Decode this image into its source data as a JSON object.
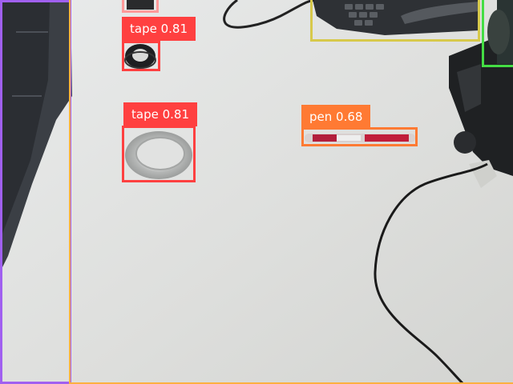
{
  "detections": [
    {
      "label": "tape 0.81",
      "color": "#ff4040"
    },
    {
      "label": "tape 0.81",
      "color": "#ff4040"
    },
    {
      "label": "pen 0.68",
      "color": "#ff7a33"
    }
  ],
  "unlabeled_boxes": [
    {
      "color": "#a060f0"
    },
    {
      "color": "#d7c94b"
    },
    {
      "color": "#44dd44"
    },
    {
      "color": "#ff9a9a"
    },
    {
      "color": "#ffb040"
    }
  ]
}
